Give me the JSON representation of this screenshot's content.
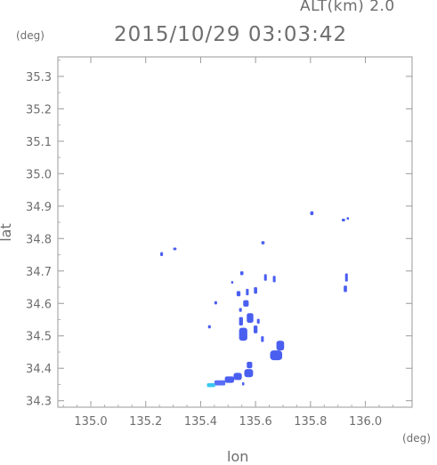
{
  "header": {
    "altitude_label": "ALT(km) 2.0",
    "timestamp": "2015/10/29 03:03:42"
  },
  "axes": {
    "y_unit": "(deg)",
    "x_unit": "(deg)",
    "x_label": "lon",
    "y_label": "lat",
    "x_ticks": [
      "135.0",
      "135.2",
      "135.4",
      "135.6",
      "135.8",
      "136.0"
    ],
    "y_ticks": [
      "35.3",
      "35.2",
      "35.1",
      "35.0",
      "34.9",
      "34.8",
      "34.7",
      "34.6",
      "34.5",
      "34.4",
      "34.3"
    ]
  },
  "chart_data": {
    "type": "heatmap",
    "xlim": [
      134.88,
      136.17
    ],
    "ylim": [
      34.28,
      35.36
    ],
    "x_tick_values": [
      135.0,
      135.2,
      135.4,
      135.6,
      135.8,
      136.0
    ],
    "y_tick_values": [
      35.3,
      35.2,
      35.1,
      35.0,
      34.9,
      34.8,
      34.7,
      34.6,
      34.5,
      34.4,
      34.3
    ],
    "grid": false,
    "colors": {
      "main": "#4a5ff0",
      "light": "#5a6ef5",
      "cyan": "#38c8f0"
    },
    "echoes": [
      {
        "lon": 135.805,
        "lat": 34.878,
        "w": 0.012,
        "h": 0.012,
        "c": "main"
      },
      {
        "lon": 135.92,
        "lat": 34.857,
        "w": 0.012,
        "h": 0.008,
        "c": "main"
      },
      {
        "lon": 135.936,
        "lat": 34.862,
        "w": 0.008,
        "h": 0.008,
        "c": "main"
      },
      {
        "lon": 135.627,
        "lat": 34.787,
        "w": 0.012,
        "h": 0.01,
        "c": "main"
      },
      {
        "lon": 135.306,
        "lat": 34.768,
        "w": 0.012,
        "h": 0.008,
        "c": "main"
      },
      {
        "lon": 135.258,
        "lat": 34.752,
        "w": 0.01,
        "h": 0.012,
        "c": "main"
      },
      {
        "lon": 135.55,
        "lat": 34.693,
        "w": 0.012,
        "h": 0.012,
        "c": "main"
      },
      {
        "lon": 135.931,
        "lat": 34.68,
        "w": 0.01,
        "h": 0.025,
        "c": "main"
      },
      {
        "lon": 135.927,
        "lat": 34.645,
        "w": 0.012,
        "h": 0.02,
        "c": "main"
      },
      {
        "lon": 135.636,
        "lat": 34.68,
        "w": 0.01,
        "h": 0.02,
        "c": "main"
      },
      {
        "lon": 135.668,
        "lat": 34.675,
        "w": 0.01,
        "h": 0.02,
        "c": "main"
      },
      {
        "lon": 135.515,
        "lat": 34.665,
        "w": 0.008,
        "h": 0.008,
        "c": "main"
      },
      {
        "lon": 135.538,
        "lat": 34.63,
        "w": 0.014,
        "h": 0.016,
        "c": "main"
      },
      {
        "lon": 135.57,
        "lat": 34.635,
        "w": 0.01,
        "h": 0.02,
        "c": "main"
      },
      {
        "lon": 135.6,
        "lat": 34.64,
        "w": 0.012,
        "h": 0.02,
        "c": "main"
      },
      {
        "lon": 135.455,
        "lat": 34.602,
        "w": 0.01,
        "h": 0.01,
        "c": "main"
      },
      {
        "lon": 135.565,
        "lat": 34.6,
        "w": 0.02,
        "h": 0.02,
        "c": "main"
      },
      {
        "lon": 135.545,
        "lat": 34.58,
        "w": 0.01,
        "h": 0.012,
        "c": "main"
      },
      {
        "lon": 135.58,
        "lat": 34.555,
        "w": 0.024,
        "h": 0.03,
        "c": "main"
      },
      {
        "lon": 135.547,
        "lat": 34.545,
        "w": 0.014,
        "h": 0.026,
        "c": "main"
      },
      {
        "lon": 135.61,
        "lat": 34.545,
        "w": 0.01,
        "h": 0.015,
        "c": "main"
      },
      {
        "lon": 135.432,
        "lat": 34.528,
        "w": 0.01,
        "h": 0.01,
        "c": "main"
      },
      {
        "lon": 135.555,
        "lat": 34.505,
        "w": 0.03,
        "h": 0.04,
        "c": "main"
      },
      {
        "lon": 135.6,
        "lat": 34.52,
        "w": 0.014,
        "h": 0.024,
        "c": "main"
      },
      {
        "lon": 135.625,
        "lat": 34.49,
        "w": 0.01,
        "h": 0.018,
        "c": "main"
      },
      {
        "lon": 135.69,
        "lat": 34.47,
        "w": 0.028,
        "h": 0.03,
        "c": "main"
      },
      {
        "lon": 135.675,
        "lat": 34.44,
        "w": 0.044,
        "h": 0.03,
        "c": "main"
      },
      {
        "lon": 135.578,
        "lat": 34.41,
        "w": 0.02,
        "h": 0.02,
        "c": "main"
      },
      {
        "lon": 135.575,
        "lat": 34.385,
        "w": 0.032,
        "h": 0.025,
        "c": "main"
      },
      {
        "lon": 135.535,
        "lat": 34.375,
        "w": 0.03,
        "h": 0.022,
        "c": "main"
      },
      {
        "lon": 135.505,
        "lat": 34.365,
        "w": 0.034,
        "h": 0.02,
        "c": "main"
      },
      {
        "lon": 135.47,
        "lat": 34.355,
        "w": 0.04,
        "h": 0.016,
        "c": "light"
      },
      {
        "lon": 135.438,
        "lat": 34.348,
        "w": 0.03,
        "h": 0.012,
        "c": "cyan"
      },
      {
        "lon": 135.555,
        "lat": 34.352,
        "w": 0.008,
        "h": 0.01,
        "c": "main"
      }
    ]
  }
}
